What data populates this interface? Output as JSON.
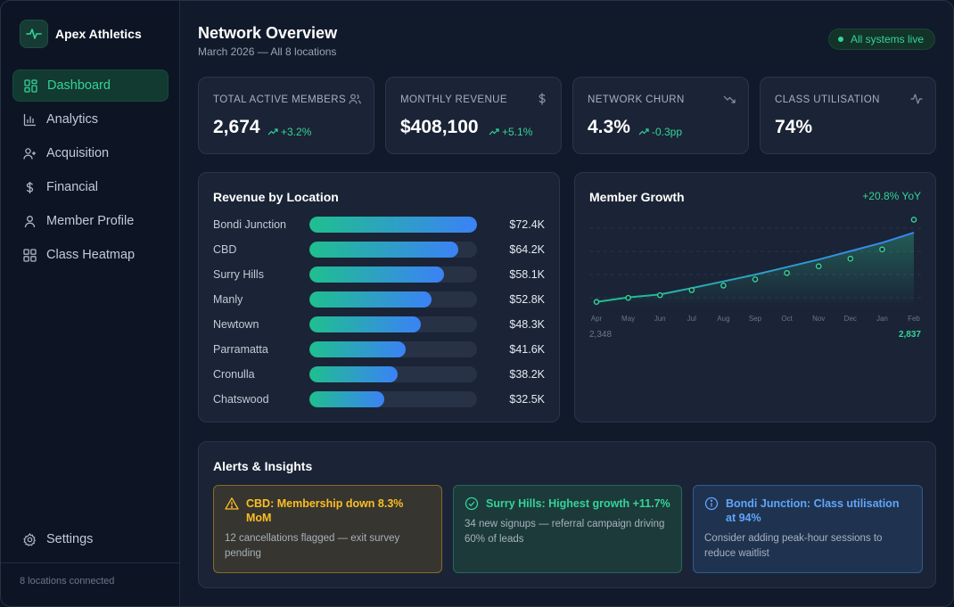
{
  "brand": {
    "name": "Apex Athletics",
    "icon": "pulse-icon"
  },
  "sidebar": {
    "items": [
      {
        "label": "Dashboard",
        "icon": "dashboard-grid-icon",
        "active": true
      },
      {
        "label": "Analytics",
        "icon": "bar-chart-icon"
      },
      {
        "label": "Acquisition",
        "icon": "user-plus-icon"
      },
      {
        "label": "Financial",
        "icon": "dollar-icon"
      },
      {
        "label": "Member Profile",
        "icon": "user-icon"
      },
      {
        "label": "Class Heatmap",
        "icon": "grid-icon"
      }
    ],
    "settings_label": "Settings",
    "footer": "8 locations connected"
  },
  "header": {
    "title": "Network Overview",
    "subtitle": "March 2026 — All 8 locations",
    "status": "All systems live"
  },
  "stats": [
    {
      "label": "TOTAL ACTIVE MEMBERS",
      "value": "2,674",
      "delta": "+3.2%",
      "icon": "users-icon"
    },
    {
      "label": "MONTHLY REVENUE",
      "value": "$408,100",
      "delta": "+5.1%",
      "icon": "dollar-icon"
    },
    {
      "label": "NETWORK CHURN",
      "value": "4.3%",
      "delta": "-0.3pp",
      "icon": "trend-down-icon"
    },
    {
      "label": "CLASS UTILISATION",
      "value": "74%",
      "delta": "",
      "icon": "activity-icon"
    }
  ],
  "revenue": {
    "title": "Revenue by Location",
    "rows": [
      {
        "name": "Bondi Junction",
        "value": "$72.4K",
        "amount": 72.4
      },
      {
        "name": "CBD",
        "value": "$64.2K",
        "amount": 64.2
      },
      {
        "name": "Surry Hills",
        "value": "$58.1K",
        "amount": 58.1
      },
      {
        "name": "Manly",
        "value": "$52.8K",
        "amount": 52.8
      },
      {
        "name": "Newtown",
        "value": "$48.3K",
        "amount": 48.3
      },
      {
        "name": "Parramatta",
        "value": "$41.6K",
        "amount": 41.6
      },
      {
        "name": "Cronulla",
        "value": "$38.2K",
        "amount": 38.2
      },
      {
        "name": "Chatswood",
        "value": "$32.5K",
        "amount": 32.5
      }
    ]
  },
  "growth": {
    "title": "Member Growth",
    "badge": "+20.8% YoY",
    "min_label": "2,348",
    "max_label": "2,837"
  },
  "chart_data": {
    "type": "line",
    "title": "Member Growth",
    "categories": [
      "Apr",
      "May",
      "Jun",
      "Jul",
      "Aug",
      "Sep",
      "Oct",
      "Nov",
      "Dec",
      "Jan",
      "Feb"
    ],
    "series": [
      {
        "values": [
          2348,
          2375,
          2392,
          2430,
          2470,
          2510,
          2555,
          2600,
          2650,
          2700,
          2760
        ],
        "style": "line",
        "color": "#3b82f6"
      },
      {
        "values": [
          2348,
          2372,
          2388,
          2418,
          2445,
          2482,
          2520,
          2560,
          2605,
          2660,
          2837
        ],
        "style": "points",
        "color": "#34d399"
      }
    ],
    "ylim": [
      2320,
      2850
    ],
    "grid": true
  },
  "alerts": {
    "title": "Alerts & Insights",
    "items": [
      {
        "kind": "warn",
        "icon": "warning-icon",
        "title": "CBD: Membership down 8.3% MoM",
        "body": "12 cancellations flagged — exit survey pending"
      },
      {
        "kind": "ok",
        "icon": "check-circle-icon",
        "title": "Surry Hills: Highest growth +11.7%",
        "body": "34 new signups — referral campaign driving 60% of leads"
      },
      {
        "kind": "info",
        "icon": "info-icon",
        "title": "Bondi Junction: Class utilisation at 94%",
        "body": "Consider adding peak-hour sessions to reduce waitlist"
      }
    ]
  },
  "colors": {
    "accent": "#34d399",
    "blue": "#3b82f6",
    "warn": "#fbbf24",
    "info": "#60a5fa"
  }
}
